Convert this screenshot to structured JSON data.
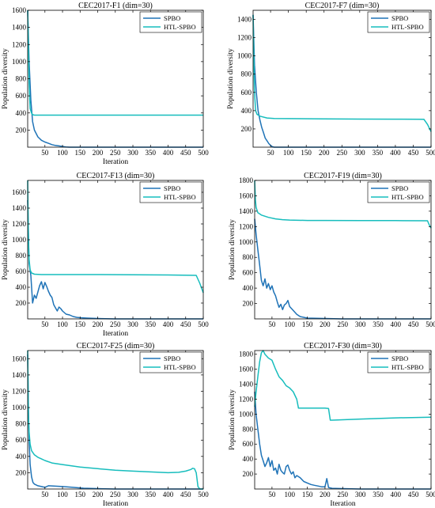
{
  "colors": {
    "spbo": "#1f73b7",
    "htl": "#17bdbd",
    "axis": "#000000"
  },
  "chart_data": [
    {
      "type": "line",
      "title": "CEC2017-F1 (dim=30)",
      "xlabel": "Iteration",
      "ylabel": "Population diversity",
      "xlim": [
        1,
        500
      ],
      "ylim": [
        0,
        1600
      ],
      "xticks": [
        50,
        100,
        150,
        200,
        250,
        300,
        350,
        400,
        450,
        500
      ],
      "yticks": [
        200,
        400,
        600,
        800,
        1000,
        1200,
        1400,
        1600
      ],
      "legend_position": "top-right",
      "series": [
        {
          "name": "SPBO",
          "x": [
            1,
            5,
            10,
            15,
            20,
            30,
            40,
            50,
            60,
            70,
            80,
            90,
            100,
            110,
            120,
            500
          ],
          "y": [
            1600,
            1000,
            550,
            300,
            200,
            120,
            80,
            60,
            45,
            30,
            20,
            15,
            8,
            3,
            0,
            0
          ]
        },
        {
          "name": "HTL-SPBO",
          "x": [
            1,
            3,
            5,
            8,
            12,
            15,
            20,
            50,
            100,
            200,
            300,
            400,
            500
          ],
          "y": [
            1600,
            1200,
            750,
            450,
            400,
            380,
            375,
            375,
            375,
            375,
            375,
            375,
            375
          ]
        }
      ]
    },
    {
      "type": "line",
      "title": "CEC2017-F7 (dim=30)",
      "xlabel": "",
      "ylabel": "Population diversity",
      "xlim": [
        1,
        500
      ],
      "ylim": [
        0,
        1500
      ],
      "xticks": [
        50,
        100,
        150,
        200,
        250,
        300,
        350,
        400,
        450,
        500
      ],
      "yticks": [
        200,
        400,
        600,
        800,
        1000,
        1200,
        1400
      ],
      "legend_position": "top-right",
      "series": [
        {
          "name": "SPBO",
          "x": [
            1,
            5,
            10,
            15,
            20,
            25,
            30,
            35,
            40,
            45,
            50,
            55,
            60,
            500
          ],
          "y": [
            1450,
            900,
            600,
            400,
            300,
            220,
            160,
            100,
            70,
            40,
            20,
            5,
            0,
            0
          ]
        },
        {
          "name": "HTL-SPBO",
          "x": [
            1,
            3,
            5,
            8,
            12,
            20,
            40,
            60,
            100,
            200,
            300,
            400,
            480,
            490,
            500
          ],
          "y": [
            1450,
            1000,
            600,
            400,
            360,
            340,
            320,
            315,
            313,
            310,
            308,
            307,
            305,
            250,
            170
          ]
        }
      ]
    },
    {
      "type": "line",
      "title": "CEC2017-F13 (dim=30)",
      "xlabel": "Iteration",
      "ylabel": "Population diversity",
      "xlim": [
        1,
        500
      ],
      "ylim": [
        0,
        1750
      ],
      "xticks": [
        50,
        100,
        150,
        200,
        250,
        300,
        350,
        400,
        450,
        500
      ],
      "yticks": [
        200,
        400,
        600,
        800,
        1000,
        1200,
        1400,
        1600
      ],
      "legend_position": "top-right",
      "series": [
        {
          "name": "SPBO",
          "x": [
            1,
            5,
            10,
            15,
            20,
            25,
            30,
            35,
            40,
            45,
            50,
            55,
            60,
            65,
            70,
            75,
            80,
            85,
            90,
            95,
            100,
            110,
            120,
            130,
            140,
            150,
            170,
            200,
            250,
            500
          ],
          "y": [
            1500,
            700,
            550,
            200,
            300,
            260,
            340,
            420,
            470,
            380,
            460,
            410,
            350,
            300,
            270,
            180,
            140,
            100,
            150,
            130,
            100,
            60,
            50,
            30,
            20,
            15,
            10,
            5,
            0,
            0
          ]
        },
        {
          "name": "HTL-SPBO",
          "x": [
            1,
            3,
            5,
            8,
            12,
            20,
            40,
            100,
            200,
            300,
            400,
            480,
            490,
            500
          ],
          "y": [
            1750,
            1000,
            750,
            620,
            580,
            565,
            560,
            560,
            560,
            558,
            555,
            550,
            450,
            330
          ]
        }
      ]
    },
    {
      "type": "line",
      "title": "CEC2017-F19 (dim=30)",
      "xlabel": "",
      "ylabel": "Population diversity",
      "xlim": [
        1,
        500
      ],
      "ylim": [
        0,
        1800
      ],
      "xticks": [
        50,
        100,
        150,
        200,
        250,
        300,
        350,
        400,
        450,
        500
      ],
      "yticks": [
        200,
        400,
        600,
        800,
        1000,
        1200,
        1400,
        1600,
        1800
      ],
      "legend_position": "top-right",
      "series": [
        {
          "name": "SPBO",
          "x": [
            1,
            5,
            10,
            15,
            20,
            25,
            30,
            35,
            40,
            45,
            50,
            55,
            60,
            65,
            70,
            75,
            80,
            85,
            90,
            95,
            100,
            110,
            120,
            130,
            150,
            200,
            250,
            500
          ],
          "y": [
            1300,
            1100,
            900,
            700,
            500,
            430,
            520,
            400,
            460,
            380,
            430,
            350,
            300,
            220,
            150,
            190,
            120,
            180,
            200,
            240,
            160,
            110,
            60,
            30,
            10,
            5,
            0,
            0
          ]
        },
        {
          "name": "HTL-SPBO",
          "x": [
            1,
            3,
            5,
            10,
            20,
            40,
            60,
            80,
            100,
            150,
            200,
            300,
            400,
            490,
            495,
            500
          ],
          "y": [
            1800,
            1550,
            1450,
            1380,
            1350,
            1320,
            1300,
            1290,
            1285,
            1280,
            1280,
            1278,
            1278,
            1275,
            1220,
            1180
          ]
        }
      ]
    },
    {
      "type": "line",
      "title": "CEC2017-F25 (dim=30)",
      "xlabel": "Iteration",
      "ylabel": "Population diversity",
      "xlim": [
        1,
        500
      ],
      "ylim": [
        0,
        1700
      ],
      "xticks": [
        50,
        100,
        150,
        200,
        250,
        300,
        350,
        400,
        450,
        500
      ],
      "yticks": [
        200,
        400,
        600,
        800,
        1000,
        1200,
        1400,
        1600
      ],
      "legend_position": "top-right",
      "series": [
        {
          "name": "SPBO",
          "x": [
            1,
            3,
            5,
            8,
            12,
            16,
            20,
            30,
            40,
            50,
            60,
            80,
            100,
            130,
            160,
            200,
            250,
            300,
            500
          ],
          "y": [
            1650,
            1000,
            600,
            300,
            150,
            80,
            60,
            40,
            30,
            20,
            40,
            35,
            30,
            20,
            10,
            5,
            0,
            0,
            0
          ]
        },
        {
          "name": "HTL-SPBO",
          "x": [
            1,
            3,
            5,
            8,
            12,
            20,
            30,
            40,
            50,
            70,
            100,
            150,
            200,
            250,
            300,
            350,
            400,
            430,
            450,
            465,
            470,
            475,
            480,
            485,
            490,
            500
          ],
          "y": [
            1700,
            900,
            700,
            550,
            470,
            420,
            390,
            370,
            350,
            320,
            300,
            270,
            250,
            230,
            220,
            210,
            200,
            205,
            220,
            240,
            255,
            250,
            200,
            30,
            0,
            0
          ]
        }
      ]
    },
    {
      "type": "line",
      "title": "CEC2017-F30 (dim=30)",
      "xlabel": "Iteration",
      "ylabel": "Population diversity",
      "xlim": [
        1,
        500
      ],
      "ylim": [
        0,
        1850
      ],
      "xticks": [
        50,
        100,
        150,
        200,
        250,
        300,
        350,
        400,
        450,
        500
      ],
      "yticks": [
        200,
        400,
        600,
        800,
        1000,
        1200,
        1400,
        1600,
        1800
      ],
      "legend_position": "top-right",
      "series": [
        {
          "name": "SPBO",
          "x": [
            1,
            5,
            10,
            15,
            20,
            25,
            30,
            35,
            40,
            45,
            50,
            55,
            60,
            65,
            70,
            75,
            80,
            85,
            90,
            95,
            100,
            105,
            110,
            115,
            120,
            130,
            140,
            150,
            160,
            170,
            180,
            190,
            200,
            205,
            210,
            220,
            250,
            300,
            500
          ],
          "y": [
            1300,
            1000,
            800,
            600,
            450,
            380,
            300,
            350,
            420,
            300,
            380,
            250,
            280,
            200,
            330,
            250,
            220,
            200,
            300,
            320,
            250,
            200,
            230,
            150,
            180,
            150,
            100,
            80,
            60,
            50,
            40,
            30,
            30,
            140,
            20,
            10,
            5,
            0,
            0
          ]
        },
        {
          "name": "HTL-SPBO",
          "x": [
            1,
            5,
            10,
            15,
            20,
            25,
            30,
            40,
            50,
            60,
            70,
            80,
            90,
            100,
            110,
            120,
            125,
            130,
            200,
            210,
            215,
            220,
            300,
            400,
            500
          ],
          "y": [
            1100,
            1300,
            1500,
            1700,
            1820,
            1850,
            1800,
            1750,
            1720,
            1600,
            1500,
            1450,
            1380,
            1350,
            1300,
            1200,
            1080,
            1080,
            1080,
            1075,
            920,
            920,
            935,
            950,
            960
          ]
        }
      ]
    }
  ]
}
